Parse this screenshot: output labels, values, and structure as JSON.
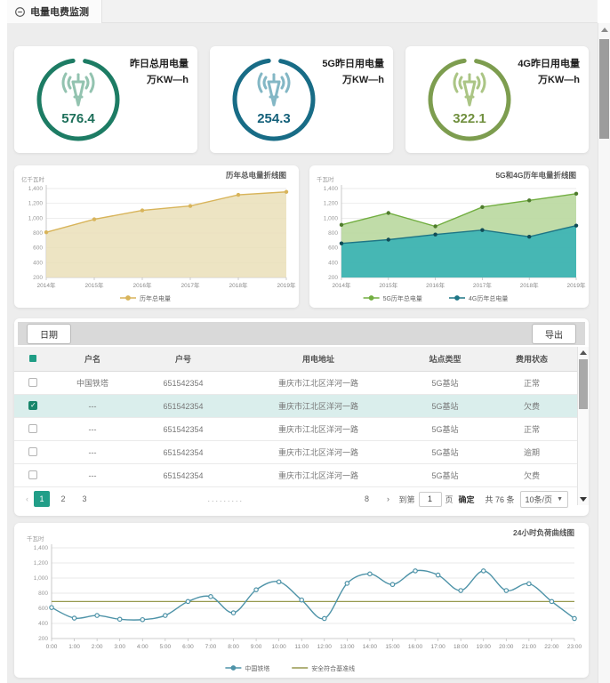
{
  "tab": {
    "label": "电量电费监测"
  },
  "cards": [
    {
      "title_line1": "昨日总用电量",
      "title_line2": "万KW—h",
      "value": "576.4",
      "ring_color": "#1d7c64",
      "icon_color": "#93c3b0",
      "value_color": "#1d6f5a"
    },
    {
      "title_line1": "5G昨日用电量",
      "title_line2": "万KW—h",
      "value": "254.3",
      "ring_color": "#186c86",
      "icon_color": "#83b7c5",
      "value_color": "#15617a"
    },
    {
      "title_line1": "4G昨日用电量",
      "title_line2": "万KW—h",
      "value": "322.1",
      "ring_color": "#7d9d4f",
      "icon_color": "#abc585",
      "value_color": "#71903f"
    }
  ],
  "chart_data": [
    {
      "type": "area",
      "title": "历年总电量折线图",
      "unit": "亿千瓦时",
      "categories": [
        "2014年",
        "2015年",
        "2016年",
        "2017年",
        "2018年",
        "2019年"
      ],
      "series": [
        {
          "name": "历年总电量",
          "values": [
            810,
            985,
            1105,
            1165,
            1315,
            1355
          ],
          "color": "#d8b45a",
          "fill": "#eadfb9",
          "fill_opacity": 0.85,
          "marker": "#d8b45a"
        }
      ],
      "ylim": [
        200,
        1400
      ],
      "ytick": 200,
      "grid": true,
      "legend_position": "bottom"
    },
    {
      "type": "area",
      "title": "5G和4G历年电量折线图",
      "unit": "千瓦时",
      "categories": [
        "2014年",
        "2015年",
        "2016年",
        "2017年",
        "2018年",
        "2019年"
      ],
      "series": [
        {
          "name": "5G历年总电量",
          "values": [
            910,
            1070,
            890,
            1150,
            1240,
            1330
          ],
          "color": "#72ae41",
          "fill": "#b9d89e",
          "fill_opacity": 0.9,
          "marker": "#4f7c2d"
        },
        {
          "name": "4G历年总电量",
          "values": [
            660,
            710,
            780,
            840,
            750,
            900
          ],
          "color": "#1e7686",
          "fill": "#3fb4b4",
          "fill_opacity": 0.95,
          "marker": "#114c56"
        }
      ],
      "ylim": [
        200,
        1400
      ],
      "ytick": 200,
      "grid": true,
      "legend_position": "bottom"
    },
    {
      "type": "line",
      "title": "24小时负荷曲线图",
      "unit": "千瓦时",
      "categories": [
        "0:00",
        "1:00",
        "2:00",
        "3:00",
        "4:00",
        "5:00",
        "6:00",
        "7:00",
        "8:00",
        "9:00",
        "10:00",
        "11:00",
        "12:00",
        "13:00",
        "14:00",
        "15:00",
        "16:00",
        "17:00",
        "18:00",
        "19:00",
        "20:00",
        "21:00",
        "22:00",
        "23:00"
      ],
      "series": [
        {
          "name": "中国铁塔",
          "values": [
            610,
            470,
            505,
            455,
            450,
            505,
            690,
            755,
            540,
            845,
            950,
            710,
            465,
            930,
            1055,
            915,
            1095,
            1040,
            835,
            1095,
            835,
            925,
            690,
            465
          ],
          "color": "#4e93a8",
          "marker": "hollow",
          "smooth": true
        }
      ],
      "baseline": {
        "label": "安全符合基准线",
        "value": 690,
        "color": "#97994f"
      },
      "ylim": [
        200,
        1400
      ],
      "ytick": 200,
      "grid": true,
      "legend_position": "bottom"
    }
  ],
  "table": {
    "toolbar": {
      "date_button": "日期",
      "export_button": "导出"
    },
    "columns": [
      "户名",
      "户号",
      "用电地址",
      "站点类型",
      "费用状态"
    ],
    "rows": [
      {
        "checked": false,
        "selected": false,
        "name": "中国铁塔",
        "account": "651542354",
        "address": "重庆市江北区洋河一路",
        "site_type": "5G基站",
        "fee_status": "正常"
      },
      {
        "checked": true,
        "selected": true,
        "name": "---",
        "account": "651542354",
        "address": "重庆市江北区洋河一路",
        "site_type": "5G基站",
        "fee_status": "欠费"
      },
      {
        "checked": false,
        "selected": false,
        "name": "---",
        "account": "651542354",
        "address": "重庆市江北区洋河一路",
        "site_type": "5G基站",
        "fee_status": "正常"
      },
      {
        "checked": false,
        "selected": false,
        "name": "---",
        "account": "651542354",
        "address": "重庆市江北区洋河一路",
        "site_type": "5G基站",
        "fee_status": "逾期"
      },
      {
        "checked": false,
        "selected": false,
        "name": "---",
        "account": "651542354",
        "address": "重庆市江北区洋河一路",
        "site_type": "5G基站",
        "fee_status": "欠费"
      }
    ],
    "pagination": {
      "prev": "‹",
      "page1": "1",
      "page2": "2",
      "page3": "3",
      "dots": ".........",
      "page_last": "8",
      "next": "›",
      "goto_prefix": "到第",
      "goto_value": "1",
      "goto_suffix": "页",
      "confirm_label": "确定",
      "total_label": "共 76 条",
      "page_size_label": "10条/页"
    }
  },
  "colors": {
    "accent_green": "#229e88",
    "selected_row": "#daeeec"
  }
}
